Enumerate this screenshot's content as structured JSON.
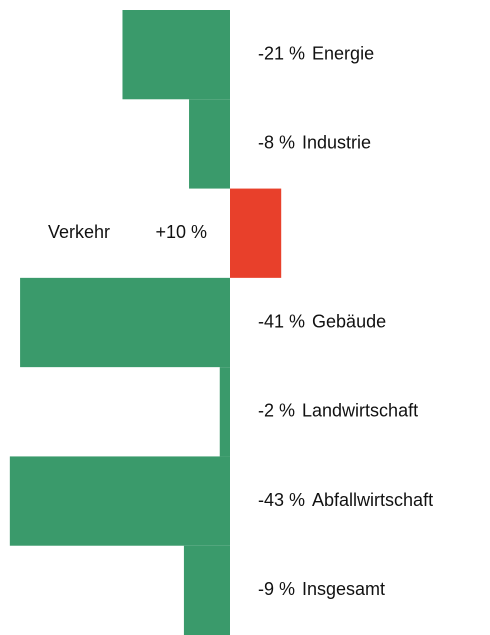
{
  "chart_data": {
    "type": "bar",
    "orientation": "horizontal",
    "categories": [
      "Energie",
      "Industrie",
      "Verkehr",
      "Gebäude",
      "Landwirtschaft",
      "Abfallwirtschaft",
      "Insgesamt"
    ],
    "values": [
      -21,
      -8,
      10,
      -41,
      -2,
      -43,
      -9
    ],
    "value_labels": [
      "-21 %",
      "-8 %",
      "+10 %",
      "-41 %",
      "-2 %",
      "-43 %",
      "-9 %"
    ],
    "colors": [
      "#3a9a6b",
      "#3a9a6b",
      "#e8402b",
      "#3a9a6b",
      "#3a9a6b",
      "#3a9a6b",
      "#3a9a6b"
    ]
  }
}
